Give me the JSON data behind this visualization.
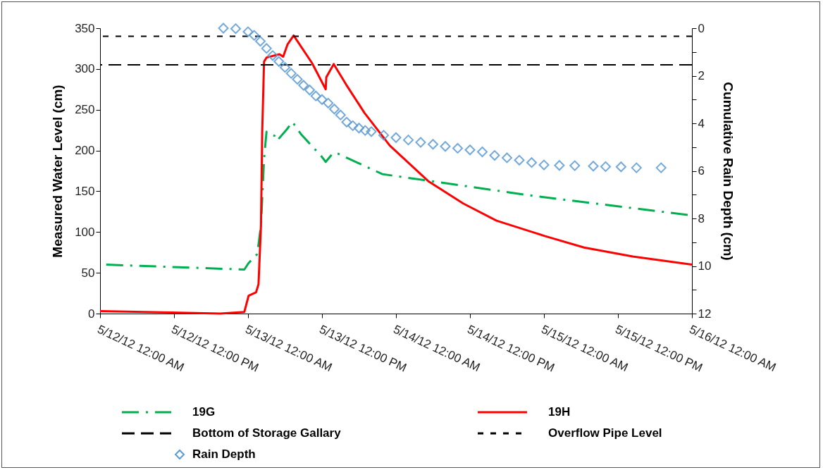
{
  "chart_data": {
    "type": "line",
    "ylabel": "Measured Water Level (cm)",
    "y2label": "Cumulative Rain Depth (cm)",
    "xlim": [
      "--05-12T00:00",
      "--05-16T00:00"
    ],
    "xticks": [
      {
        "value": "--05-12T00:00",
        "label": "5/12/12 12:00 AM"
      },
      {
        "value": "--05-12T12:00",
        "label": "5/12/12 12:00 PM"
      },
      {
        "value": "--05-13T00:00",
        "label": "5/13/12 12:00 AM"
      },
      {
        "value": "--05-13T12:00",
        "label": "5/13/12 12:00 PM"
      },
      {
        "value": "--05-14T00:00",
        "label": "5/14/12 12:00 AM"
      },
      {
        "value": "--05-14T12:00",
        "label": "5/14/12 12:00 PM"
      },
      {
        "value": "--05-15T00:00",
        "label": "5/15/12 12:00 AM"
      },
      {
        "value": "--05-15T12:00",
        "label": "5/15/12 12:00 PM"
      },
      {
        "value": "--05-16T00:00",
        "label": "5/16/12 12:00 AM"
      }
    ],
    "ylim": [
      0,
      350
    ],
    "yticks": [
      0,
      50,
      100,
      150,
      200,
      250,
      300,
      350
    ],
    "y2lim": [
      12,
      0
    ],
    "y2ticks": [
      0,
      {
        "value": 1,
        "label": null
      },
      2,
      {
        "value": 3,
        "label": null
      },
      4,
      {
        "value": 5,
        "label": null
      },
      6,
      {
        "value": 7,
        "label": null
      },
      8,
      {
        "value": 9,
        "label": null
      },
      10,
      {
        "value": 11,
        "label": null
      },
      12
    ],
    "grid": false,
    "legend": "bottom",
    "series": [
      {
        "name": "19G",
        "type": "line",
        "color": "#00b050",
        "line_style": "dashed",
        "x": [
          "--05-12T01:00",
          "--05-12T23:24",
          "--05-13T00:06",
          "--05-13T01:30",
          "--05-13T02:06",
          "--05-13T02:36",
          "--05-13T03:00",
          "--05-13T04:18",
          "--05-13T04:42",
          "--05-13T06:18",
          "--05-13T07:12",
          "--05-13T08:36",
          "--05-13T12:00",
          "--05-13T12:36",
          "--05-13T13:48",
          "--05-13T14:36",
          "--05-13T21:48",
          "--05-14T06:06",
          "--05-14T22:36",
          "--05-15T23:24"
        ],
        "values": [
          60,
          54,
          62,
          73,
          108,
          190,
          223,
          218,
          212,
          226,
          235,
          220,
          192,
          186,
          197,
          196,
          171,
          162,
          144,
          121
        ]
      },
      {
        "name": "19H",
        "type": "line",
        "color": "#ff0000",
        "line_style": "solid",
        "x": [
          "--05-12T00:00",
          "--05-12T19:30",
          "--05-12T23:24",
          "--05-13T00:06",
          "--05-13T01:18",
          "--05-13T01:42",
          "--05-13T02:06",
          "--05-13T02:18",
          "--05-13T02:36",
          "--05-13T03:00",
          "--05-13T05:06",
          "--05-13T05:42",
          "--05-13T06:24",
          "--05-13T07:24",
          "--05-13T10:24",
          "--05-13T12:36",
          "--05-13T12:42",
          "--05-13T13:54",
          "--05-13T15:54",
          "--05-13T18:54",
          "--05-13T23:00",
          "--05-14T05:18",
          "--05-14T10:54",
          "--05-14T16:18",
          "--05-15T00:12",
          "--05-15T06:30",
          "--05-15T14:24",
          "--05-16T00:00"
        ],
        "values": [
          3,
          0,
          2,
          22,
          26,
          36,
          108,
          223,
          309,
          314,
          318,
          315,
          330,
          341,
          307,
          275,
          290,
          306,
          281,
          246,
          206,
          162,
          135,
          114,
          95,
          81,
          70,
          60
        ]
      },
      {
        "name": "Rain Depth",
        "type": "scatter",
        "axis": "y2",
        "color": "#5b9bd5",
        "marker": "diamond",
        "x": [
          "--05-12T20:00",
          "--05-12T22:00",
          "--05-13T00:00",
          "--05-13T01:00",
          "--05-13T02:00",
          "--05-13T03:00",
          "--05-13T04:00",
          "--05-13T05:00",
          "--05-13T06:00",
          "--05-13T07:00",
          "--05-13T08:00",
          "--05-13T09:00",
          "--05-13T10:00",
          "--05-13T11:00",
          "--05-13T12:00",
          "--05-13T13:00",
          "--05-13T14:00",
          "--05-13T15:00",
          "--05-13T16:00",
          "--05-13T17:00",
          "--05-13T18:00",
          "--05-13T19:00",
          "--05-13T20:00",
          "--05-13T22:00",
          "--05-14T00:00",
          "--05-14T02:00",
          "--05-14T04:00",
          "--05-14T06:00",
          "--05-14T08:00",
          "--05-14T10:00",
          "--05-14T12:00",
          "--05-14T14:00",
          "--05-14T16:00",
          "--05-14T18:00",
          "--05-14T20:00",
          "--05-14T22:00",
          "--05-15T00:00",
          "--05-15T02:30",
          "--05-15T05:00",
          "--05-15T08:00",
          "--05-15T10:00",
          "--05-15T12:30",
          "--05-15T15:00",
          "--05-15T19:00"
        ],
        "values": [
          0,
          0.02,
          0.15,
          0.3,
          0.55,
          0.85,
          1.15,
          1.4,
          1.65,
          1.9,
          2.15,
          2.4,
          2.6,
          2.85,
          3.0,
          3.15,
          3.4,
          3.65,
          3.95,
          4.1,
          4.2,
          4.3,
          4.35,
          4.5,
          4.6,
          4.7,
          4.8,
          4.88,
          4.97,
          5.05,
          5.12,
          5.2,
          5.35,
          5.45,
          5.55,
          5.65,
          5.75,
          5.77,
          5.78,
          5.8,
          5.82,
          5.83,
          5.87,
          5.87
        ]
      }
    ],
    "ref_lines": [
      {
        "axis": "y",
        "value": 305,
        "label": "Bottom of Storage Gallary",
        "color": "#000000",
        "line_style": "dashed"
      },
      {
        "axis": "y",
        "value": 340,
        "label": "Overflow Pipe Level",
        "color": "#000000",
        "line_style": "dotted"
      }
    ]
  }
}
